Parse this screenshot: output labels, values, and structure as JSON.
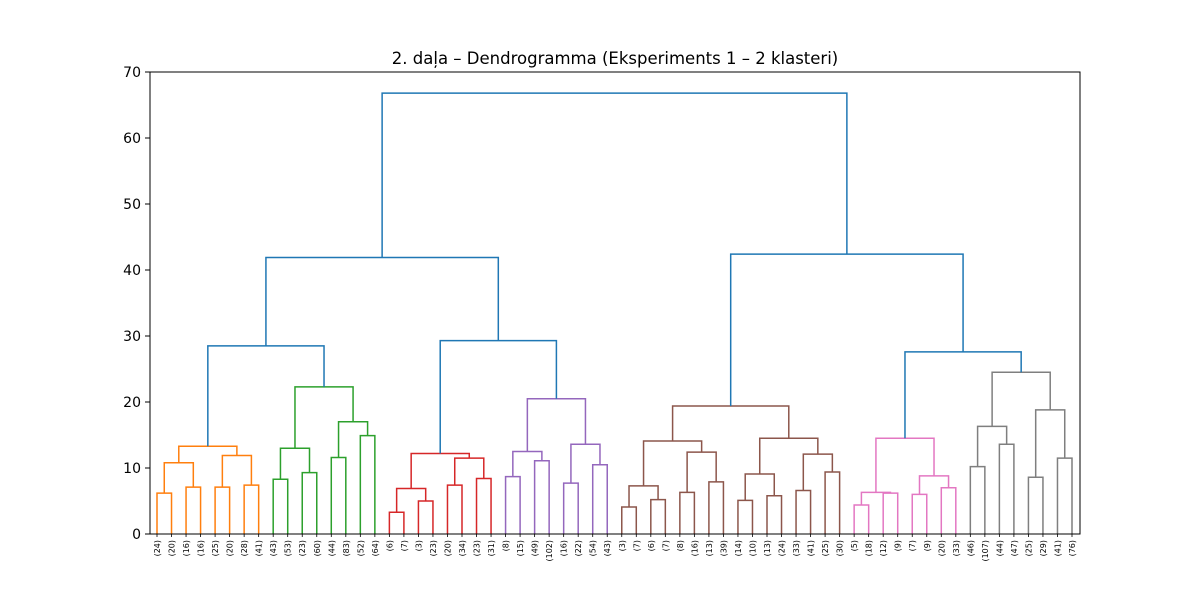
{
  "chart_data": {
    "type": "dendrogram",
    "title": "2. daļa – Dendrogramma (Eksperiments 1 – 2 klasteri)",
    "xlabel": "",
    "ylabel": "",
    "ylim": [
      0,
      70
    ],
    "yticks": [
      0,
      10,
      20,
      30,
      40,
      50,
      60,
      70
    ],
    "grid": false,
    "leaf_labels": [
      "(24)",
      "(20)",
      "(16)",
      "(16)",
      "(25)",
      "(20)",
      "(28)",
      "(41)",
      "(43)",
      "(53)",
      "(23)",
      "(60)",
      "(44)",
      "(83)",
      "(52)",
      "(64)",
      "(6)",
      "(7)",
      "(3)",
      "(23)",
      "(20)",
      "(34)",
      "(23)",
      "(31)",
      "(8)",
      "(15)",
      "(49)",
      "(102)",
      "(16)",
      "(22)",
      "(54)",
      "(43)",
      "(3)",
      "(7)",
      "(6)",
      "(7)",
      "(8)",
      "(16)",
      "(13)",
      "(39)",
      "(14)",
      "(10)",
      "(13)",
      "(24)",
      "(33)",
      "(41)",
      "(25)",
      "(30)",
      "(5)",
      "(18)",
      "(12)",
      "(9)",
      "(7)",
      "(9)",
      "(20)",
      "(33)",
      "(46)",
      "(107)",
      "(44)",
      "(47)",
      "(25)",
      "(29)",
      "(41)",
      "(76)"
    ],
    "cluster_colors": {
      "C1": "#ff7f0e",
      "C2": "#2ca02c",
      "C3": "#d62728",
      "C4": "#9467bd",
      "C5": "#8c564b",
      "C6": "#e377c2",
      "C7": "#7f7f7f",
      "above": "#1f77b4"
    },
    "merges": [
      {
        "left": 0,
        "right": 1,
        "height": 6.2,
        "color": "C1"
      },
      {
        "left": 2,
        "right": 3,
        "height": 7.1,
        "color": "C1"
      },
      {
        "left": 4,
        "right": 5,
        "height": 7.1,
        "color": "C1"
      },
      {
        "left": 6,
        "right": 7,
        "height": 7.4,
        "color": "C1"
      },
      {
        "left": 64,
        "right": 65,
        "height": 10.8,
        "color": "C1"
      },
      {
        "left": 66,
        "right": 67,
        "height": 11.9,
        "color": "C1"
      },
      {
        "left": 68,
        "right": 69,
        "height": 13.3,
        "color": "C1"
      },
      {
        "left": 8,
        "right": 9,
        "height": 8.3,
        "color": "C2"
      },
      {
        "left": 10,
        "right": 11,
        "height": 9.3,
        "color": "C2"
      },
      {
        "left": 12,
        "right": 13,
        "height": 11.6,
        "color": "C2"
      },
      {
        "left": 14,
        "right": 15,
        "height": 14.9,
        "color": "C2"
      },
      {
        "left": 71,
        "right": 72,
        "height": 13.0,
        "color": "C2"
      },
      {
        "left": 73,
        "right": 74,
        "height": 17.0,
        "color": "C2"
      },
      {
        "left": 75,
        "right": 76,
        "height": 22.3,
        "color": "C2"
      },
      {
        "left": 70,
        "right": 77,
        "height": 28.5,
        "color": "above"
      },
      {
        "left": 16,
        "right": 17,
        "height": 3.3,
        "color": "C3"
      },
      {
        "left": 18,
        "right": 19,
        "height": 5.0,
        "color": "C3"
      },
      {
        "left": 20,
        "right": 21,
        "height": 7.4,
        "color": "C3"
      },
      {
        "left": 22,
        "right": 23,
        "height": 8.4,
        "color": "C3"
      },
      {
        "left": 79,
        "right": 80,
        "height": 6.9,
        "color": "C3"
      },
      {
        "left": 81,
        "right": 82,
        "height": 11.5,
        "color": "C3"
      },
      {
        "left": 83,
        "right": 84,
        "height": 12.2,
        "color": "C3"
      },
      {
        "left": 24,
        "right": 25,
        "height": 8.7,
        "color": "C4"
      },
      {
        "left": 26,
        "right": 27,
        "height": 11.1,
        "color": "C4"
      },
      {
        "left": 28,
        "right": 29,
        "height": 7.7,
        "color": "C4"
      },
      {
        "left": 30,
        "right": 31,
        "height": 10.5,
        "color": "C4"
      },
      {
        "left": 86,
        "right": 87,
        "height": 12.5,
        "color": "C4"
      },
      {
        "left": 88,
        "right": 89,
        "height": 13.6,
        "color": "C4"
      },
      {
        "left": 90,
        "right": 91,
        "height": 20.5,
        "color": "C4"
      },
      {
        "left": 85,
        "right": 92,
        "height": 29.3,
        "color": "above"
      },
      {
        "left": 78,
        "right": 93,
        "height": 41.9,
        "color": "above"
      },
      {
        "left": 32,
        "right": 33,
        "height": 4.1,
        "color": "C5"
      },
      {
        "left": 34,
        "right": 35,
        "height": 5.2,
        "color": "C5"
      },
      {
        "left": 36,
        "right": 37,
        "height": 6.3,
        "color": "C5"
      },
      {
        "left": 38,
        "right": 39,
        "height": 7.9,
        "color": "C5"
      },
      {
        "left": 95,
        "right": 96,
        "height": 7.3,
        "color": "C5"
      },
      {
        "left": 97,
        "right": 98,
        "height": 12.4,
        "color": "C5"
      },
      {
        "left": 99,
        "right": 100,
        "height": 14.1,
        "color": "C5"
      },
      {
        "left": 40,
        "right": 41,
        "height": 5.1,
        "color": "C5"
      },
      {
        "left": 42,
        "right": 43,
        "height": 5.8,
        "color": "C5"
      },
      {
        "left": 44,
        "right": 45,
        "height": 6.6,
        "color": "C5"
      },
      {
        "left": 46,
        "right": 47,
        "height": 9.4,
        "color": "C5"
      },
      {
        "left": 102,
        "right": 103,
        "height": 9.1,
        "color": "C5"
      },
      {
        "left": 104,
        "right": 105,
        "height": 12.1,
        "color": "C5"
      },
      {
        "left": 106,
        "right": 107,
        "height": 14.5,
        "color": "C5"
      },
      {
        "left": 101,
        "right": 108,
        "height": 19.4,
        "color": "C5"
      },
      {
        "left": 48,
        "right": 49,
        "height": 4.4,
        "color": "C6"
      },
      {
        "left": 50,
        "right": 51,
        "height": 6.2,
        "color": "C6"
      },
      {
        "left": 52,
        "right": 53,
        "height": 6.0,
        "color": "C6"
      },
      {
        "left": 54,
        "right": 55,
        "height": 7.0,
        "color": "C6"
      },
      {
        "left": 110,
        "right": 111,
        "height": 6.3,
        "color": "C6"
      },
      {
        "left": 112,
        "right": 113,
        "height": 8.8,
        "color": "C6"
      },
      {
        "left": 114,
        "right": 115,
        "height": 14.5,
        "color": "C6"
      },
      {
        "left": 56,
        "right": 57,
        "height": 10.2,
        "color": "C7"
      },
      {
        "left": 58,
        "right": 59,
        "height": 13.6,
        "color": "C7"
      },
      {
        "left": 60,
        "right": 61,
        "height": 8.6,
        "color": "C7"
      },
      {
        "left": 62,
        "right": 63,
        "height": 11.5,
        "color": "C7"
      },
      {
        "left": 117,
        "right": 118,
        "height": 16.3,
        "color": "C7"
      },
      {
        "left": 119,
        "right": 120,
        "height": 18.8,
        "color": "C7"
      },
      {
        "left": 121,
        "right": 122,
        "height": 24.5,
        "color": "C7"
      },
      {
        "left": 116,
        "right": 123,
        "height": 27.6,
        "color": "above"
      },
      {
        "left": 109,
        "right": 124,
        "height": 42.4,
        "color": "above"
      },
      {
        "left": 94,
        "right": 125,
        "height": 66.8,
        "color": "above"
      }
    ]
  }
}
